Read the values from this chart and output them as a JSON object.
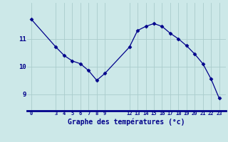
{
  "x": [
    0,
    3,
    4,
    5,
    6,
    7,
    8,
    9,
    12,
    13,
    14,
    15,
    16,
    17,
    18,
    19,
    20,
    21,
    22,
    23
  ],
  "y": [
    11.7,
    10.7,
    10.4,
    10.2,
    10.1,
    9.85,
    9.5,
    9.75,
    10.7,
    11.3,
    11.45,
    11.55,
    11.45,
    11.2,
    11.0,
    10.75,
    10.45,
    10.1,
    9.55,
    8.85
  ],
  "line_color": "#00008B",
  "marker": "D",
  "marker_size": 2.5,
  "bg_color": "#cce8e8",
  "grid_color": "#aacccc",
  "axis_color": "#00008B",
  "xlabel": "Graphe des températures (°c)",
  "xlabel_fontsize": 7,
  "xticks": [
    0,
    3,
    4,
    5,
    6,
    7,
    8,
    9,
    12,
    13,
    14,
    15,
    16,
    17,
    18,
    19,
    20,
    21,
    22,
    23
  ],
  "yticks": [
    9,
    10,
    11
  ],
  "ylim": [
    8.4,
    12.3
  ],
  "xlim": [
    -0.5,
    23.8
  ]
}
